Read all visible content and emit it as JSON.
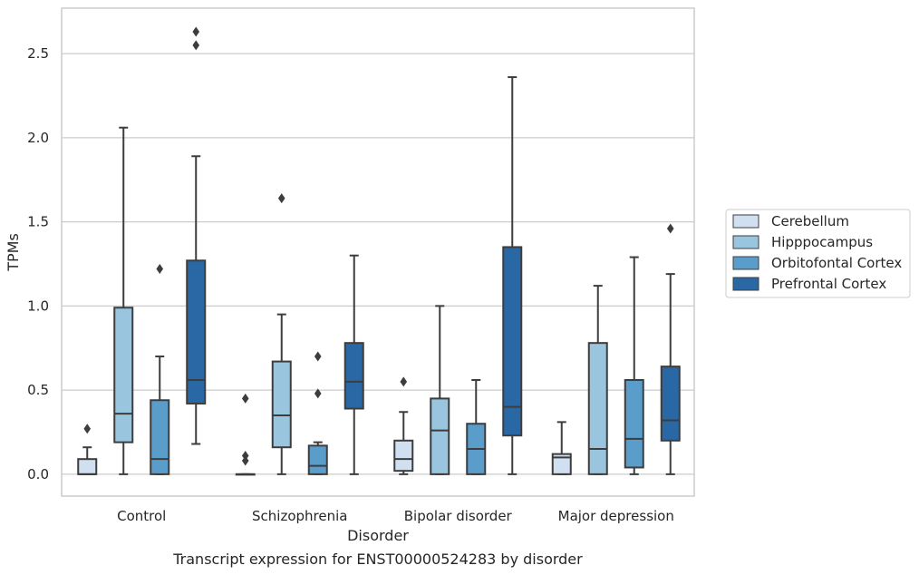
{
  "chart_data": {
    "type": "boxplot",
    "title": "Transcript expression for ENST00000524283 by disorder",
    "xlabel": "Disorder",
    "ylabel": "TPMs",
    "ylim": [
      -0.13,
      2.77
    ],
    "yticks": [
      "0.0",
      "0.5",
      "1.0",
      "1.5",
      "2.0",
      "2.5"
    ],
    "ytick_values": [
      0,
      0.5,
      1.0,
      1.5,
      2.0,
      2.5
    ],
    "grid": true,
    "legend_position": "right",
    "categories": [
      "Control",
      "Schizophrenia",
      "Bipolar disorder",
      "Major depression"
    ],
    "series": [
      {
        "name": "Cerebellum",
        "color": "#d0e0f1",
        "boxes": [
          {
            "whislo": 0.0,
            "q1": 0.0,
            "med": 0.0,
            "q3": 0.09,
            "whishi": 0.16,
            "fliers": [
              0.27
            ]
          },
          {
            "whislo": 0.0,
            "q1": 0.0,
            "med": 0.0,
            "q3": 0.0,
            "whishi": 0.0,
            "fliers": [
              0.45,
              0.11,
              0.08
            ]
          },
          {
            "whislo": 0.0,
            "q1": 0.02,
            "med": 0.09,
            "q3": 0.2,
            "whishi": 0.37,
            "fliers": [
              0.55
            ]
          },
          {
            "whislo": 0.0,
            "q1": 0.0,
            "med": 0.1,
            "q3": 0.12,
            "whishi": 0.31,
            "fliers": []
          }
        ]
      },
      {
        "name": "Hipppocampus",
        "color": "#9ac5df",
        "boxes": [
          {
            "whislo": 0.0,
            "q1": 0.19,
            "med": 0.36,
            "q3": 0.99,
            "whishi": 2.06,
            "fliers": []
          },
          {
            "whislo": 0.0,
            "q1": 0.16,
            "med": 0.35,
            "q3": 0.67,
            "whishi": 0.95,
            "fliers": [
              1.64
            ]
          },
          {
            "whislo": 0.0,
            "q1": 0.0,
            "med": 0.26,
            "q3": 0.45,
            "whishi": 1.0,
            "fliers": []
          },
          {
            "whislo": 0.0,
            "q1": 0.0,
            "med": 0.15,
            "q3": 0.78,
            "whishi": 1.12,
            "fliers": []
          }
        ]
      },
      {
        "name": "Orbitofontal Cortex",
        "color": "#5a9dcb",
        "boxes": [
          {
            "whislo": 0.0,
            "q1": 0.0,
            "med": 0.09,
            "q3": 0.44,
            "whishi": 0.7,
            "fliers": [
              1.22
            ]
          },
          {
            "whislo": 0.0,
            "q1": 0.0,
            "med": 0.05,
            "q3": 0.17,
            "whishi": 0.19,
            "fliers": [
              0.7,
              0.48
            ]
          },
          {
            "whislo": 0.0,
            "q1": 0.0,
            "med": 0.15,
            "q3": 0.3,
            "whishi": 0.56,
            "fliers": []
          },
          {
            "whislo": 0.0,
            "q1": 0.04,
            "med": 0.21,
            "q3": 0.56,
            "whishi": 1.29,
            "fliers": []
          }
        ]
      },
      {
        "name": "Prefrontal Cortex",
        "color": "#2a67a5",
        "boxes": [
          {
            "whislo": 0.18,
            "q1": 0.42,
            "med": 0.56,
            "q3": 1.27,
            "whishi": 1.89,
            "fliers": [
              2.55,
              2.63
            ]
          },
          {
            "whislo": 0.0,
            "q1": 0.39,
            "med": 0.55,
            "q3": 0.78,
            "whishi": 1.3,
            "fliers": []
          },
          {
            "whislo": 0.0,
            "q1": 0.23,
            "med": 0.4,
            "q3": 1.35,
            "whishi": 2.36,
            "fliers": []
          },
          {
            "whislo": 0.0,
            "q1": 0.2,
            "med": 0.32,
            "q3": 0.64,
            "whishi": 1.19,
            "fliers": [
              1.46
            ]
          }
        ]
      }
    ]
  }
}
